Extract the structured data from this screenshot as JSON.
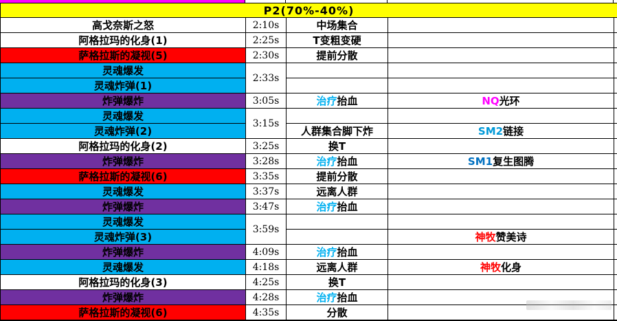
{
  "header": {
    "title": "P2(70%-40%)"
  },
  "palette": {
    "yellow": "#FFFF00",
    "magenta": "#FF00FF",
    "red": "#FF0000",
    "cyan": "#00B0F0",
    "purple": "#7030A0",
    "white": "#FFFFFF",
    "heal_text": "#00B0F0",
    "nq_text": "#FF00FF",
    "sm2_text": "#0099D8",
    "sm1_text": "#0070C0",
    "priest_text": "#FF0000",
    "black": "#000000"
  },
  "rows": [
    {
      "ability": "高戈奈斯之怒",
      "bg": "white",
      "time": "2:10s",
      "time_rowspan": 1,
      "action": [
        {
          "text": "中场集合",
          "color": "#000000"
        }
      ],
      "note": []
    },
    {
      "ability": "阿格拉玛的化身(1)",
      "bg": "white",
      "time": "2:25s",
      "time_rowspan": 1,
      "action": [
        {
          "text": "T变粗变硬",
          "color": "#000000"
        }
      ],
      "note": []
    },
    {
      "ability": "萨格拉斯的凝视(5)",
      "bg": "red",
      "time": "2:30s",
      "time_rowspan": 1,
      "action": [
        {
          "text": "提前分散",
          "color": "#000000"
        }
      ],
      "note": []
    },
    {
      "ability": "灵魂爆发",
      "bg": "cyan",
      "time": "2:33s",
      "time_rowspan": 2,
      "action": [],
      "note": []
    },
    {
      "ability": "灵魂炸弹(1)",
      "bg": "cyan",
      "time": null,
      "action": [],
      "note": []
    },
    {
      "ability": "炸弹爆炸",
      "bg": "purple",
      "time": "3:05s",
      "time_rowspan": 1,
      "action": [
        {
          "text": "治疗",
          "color": "#00B0F0"
        },
        {
          "text": "抬血",
          "color": "#000000"
        }
      ],
      "note": [
        {
          "text": "NQ",
          "color": "#FF00FF"
        },
        {
          "text": "光环",
          "color": "#000000"
        }
      ]
    },
    {
      "ability": "灵魂爆发",
      "bg": "cyan",
      "time": "3:15s",
      "time_rowspan": 2,
      "action": [],
      "note": []
    },
    {
      "ability": "灵魂炸弹(2)",
      "bg": "cyan",
      "time": null,
      "action": [
        {
          "text": "人群集合脚下炸",
          "color": "#000000"
        }
      ],
      "note": [
        {
          "text": "SM2",
          "color": "#0099D8"
        },
        {
          "text": "链接",
          "color": "#000000"
        }
      ]
    },
    {
      "ability": "阿格拉玛的化身(2)",
      "bg": "white",
      "time": "3:25s",
      "time_rowspan": 1,
      "action": [
        {
          "text": "换T",
          "color": "#000000"
        }
      ],
      "note": []
    },
    {
      "ability": "炸弹爆炸",
      "bg": "purple",
      "time": "3:28s",
      "time_rowspan": 1,
      "action": [
        {
          "text": "治疗",
          "color": "#00B0F0"
        },
        {
          "text": "抬血",
          "color": "#000000"
        }
      ],
      "note": [
        {
          "text": "SM1",
          "color": "#0070C0"
        },
        {
          "text": "复生图腾",
          "color": "#000000"
        }
      ]
    },
    {
      "ability": "萨格拉斯的凝视(6)",
      "bg": "red",
      "time": "3:35s",
      "time_rowspan": 1,
      "action": [
        {
          "text": "提前分散",
          "color": "#000000"
        }
      ],
      "note": []
    },
    {
      "ability": "灵魂爆发",
      "bg": "cyan",
      "time": "3:37s",
      "time_rowspan": 1,
      "action": [
        {
          "text": "远离人群",
          "color": "#000000"
        }
      ],
      "note": []
    },
    {
      "ability": "炸弹爆炸",
      "bg": "purple",
      "time": "3:47s",
      "time_rowspan": 1,
      "action": [
        {
          "text": "治疗",
          "color": "#00B0F0"
        },
        {
          "text": "抬血",
          "color": "#000000"
        }
      ],
      "note": []
    },
    {
      "ability": "灵魂爆发",
      "bg": "cyan",
      "time": "3:59s",
      "time_rowspan": 2,
      "action": [],
      "note": []
    },
    {
      "ability": "灵魂炸弹(3)",
      "bg": "cyan",
      "time": null,
      "action": [],
      "note": [
        {
          "text": "神牧",
          "color": "#FF0000"
        },
        {
          "text": "赞美诗",
          "color": "#000000"
        }
      ]
    },
    {
      "ability": "炸弹爆炸",
      "bg": "purple",
      "time": "4:09s",
      "time_rowspan": 1,
      "action": [
        {
          "text": "治疗",
          "color": "#00B0F0"
        },
        {
          "text": "抬血",
          "color": "#000000"
        }
      ],
      "note": []
    },
    {
      "ability": "灵魂爆发",
      "bg": "cyan",
      "time": "4:18s",
      "time_rowspan": 1,
      "action": [
        {
          "text": "远离人群",
          "color": "#000000"
        }
      ],
      "note": [
        {
          "text": "神牧",
          "color": "#FF0000"
        },
        {
          "text": "化身",
          "color": "#000000"
        }
      ]
    },
    {
      "ability": "阿格拉玛的化身(3)",
      "bg": "white",
      "time": "4:25s",
      "time_rowspan": 1,
      "action": [
        {
          "text": "换T",
          "color": "#000000"
        }
      ],
      "note": []
    },
    {
      "ability": "炸弹爆炸",
      "bg": "purple",
      "time": "4:28s",
      "time_rowspan": 1,
      "action": [
        {
          "text": "治疗",
          "color": "#00B0F0"
        },
        {
          "text": "抬血",
          "color": "#000000"
        }
      ],
      "note": []
    },
    {
      "ability": "萨格拉斯的凝视(6)",
      "bg": "red",
      "time": "4:35s",
      "time_rowspan": 1,
      "action": [
        {
          "text": "分散",
          "color": "#000000"
        }
      ],
      "note": []
    }
  ]
}
